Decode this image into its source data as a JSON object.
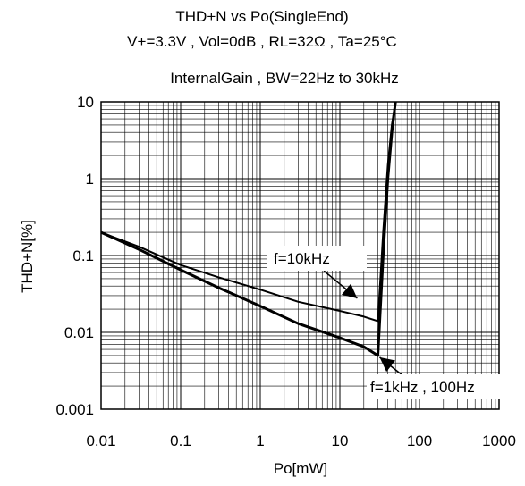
{
  "chart_data": {
    "type": "line",
    "title_lines": [
      "THD+N vs Po(SingleEnd)",
      "V+=3.3V , Vol=0dB , RL=32Ω , Ta=25°C",
      "InternalGain , BW=22Hz to 30kHz"
    ],
    "xlabel": "Po[mW]",
    "ylabel": "THD+N[%]",
    "xscale": "log",
    "yscale": "log",
    "xlim": [
      0.01,
      1000
    ],
    "ylim": [
      0.001,
      10
    ],
    "grid": true,
    "x_tick_labels": [
      "0.01",
      "0.1",
      "1",
      "10",
      "100",
      "1000"
    ],
    "y_tick_labels": [
      "0.001",
      "0.01",
      "0.1",
      "1",
      "10"
    ],
    "series": [
      {
        "name": "f=10kHz",
        "x": [
          0.01,
          0.03,
          0.1,
          0.3,
          1,
          3,
          10,
          20,
          30,
          35,
          40,
          45,
          50
        ],
        "y": [
          0.2,
          0.13,
          0.075,
          0.052,
          0.036,
          0.025,
          0.019,
          0.016,
          0.014,
          0.2,
          1.5,
          5,
          10
        ]
      },
      {
        "name": "f=1kHz , 100Hz",
        "x": [
          0.01,
          0.03,
          0.1,
          0.3,
          1,
          3,
          10,
          20,
          30,
          35,
          40,
          45,
          50
        ],
        "y": [
          0.2,
          0.12,
          0.065,
          0.038,
          0.022,
          0.013,
          0.0085,
          0.0065,
          0.005,
          0.1,
          1,
          4,
          10
        ]
      }
    ],
    "annotations": [
      {
        "text": "f=10kHz",
        "target_x": 25,
        "target_y": 0.03
      },
      {
        "text": "f=1kHz , 100Hz",
        "target_x": 30,
        "target_y": 0.005
      }
    ]
  }
}
